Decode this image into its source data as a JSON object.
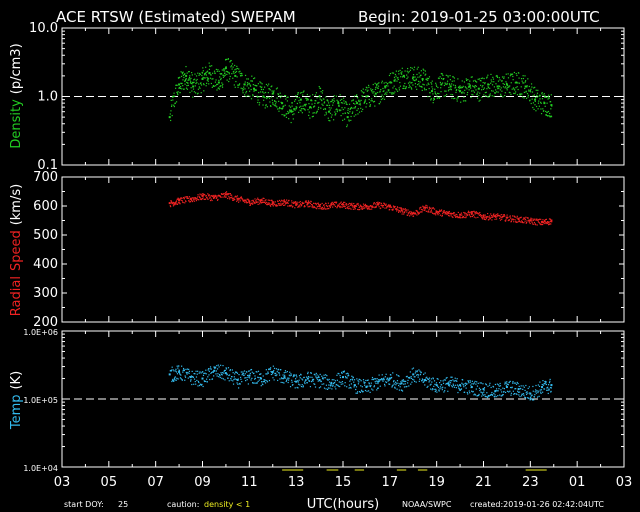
{
  "header": {
    "title": "ACE RTSW (Estimated) SWEPAM",
    "begin": "Begin: 2019-01-25 03:00:00UTC"
  },
  "footer": {
    "start_doy_label": "start DOY:",
    "start_doy_value": "25",
    "caution_label": "caution:",
    "caution_value": "density < 1",
    "source": "NOAA/SWPC",
    "created": "created:2019-01-26 02:42:04UTC"
  },
  "colors": {
    "density": "#22cc22",
    "speed": "#ee2222",
    "temp": "#33bbee",
    "caution": "#eeee22",
    "frame": "#ffffff",
    "background": "#000000"
  },
  "chart_data": [
    {
      "type": "scatter",
      "name": "density",
      "ylabel": "Density (p/cm3)",
      "ylabel_parts": [
        "Density",
        "(p/cm3)"
      ],
      "yscale": "log",
      "ylim": [
        0.1,
        10.0
      ],
      "yticks": [
        {
          "v": 10.0,
          "label": "10.0"
        },
        {
          "v": 1.0,
          "label": "1.0"
        },
        {
          "v": 0.1,
          "label": "0.1"
        }
      ],
      "reference_line": 1.0,
      "x_hours": [
        7.6,
        8.0,
        8.3,
        8.6,
        9.0,
        9.3,
        9.7,
        10.0,
        10.4,
        10.8,
        11.2,
        11.6,
        12.0,
        12.4,
        12.8,
        13.2,
        13.6,
        14.0,
        14.4,
        14.8,
        15.2,
        15.6,
        16.0,
        16.4,
        16.8,
        17.2,
        17.6,
        18.0,
        18.4,
        18.8,
        19.2,
        19.6,
        20.0,
        20.4,
        20.8,
        21.2,
        21.6,
        22.0,
        22.4,
        22.8,
        23.2,
        23.6,
        23.9
      ],
      "y": [
        0.5,
        1.5,
        2.0,
        1.4,
        1.8,
        2.2,
        1.6,
        2.6,
        2.0,
        1.5,
        1.3,
        1.0,
        1.1,
        0.8,
        0.6,
        0.9,
        0.7,
        1.0,
        0.6,
        0.8,
        0.5,
        0.8,
        1.0,
        1.1,
        1.4,
        1.7,
        2.0,
        1.9,
        1.8,
        1.2,
        1.5,
        1.4,
        1.2,
        1.4,
        1.3,
        1.5,
        1.4,
        1.5,
        1.6,
        1.4,
        0.9,
        0.8,
        0.75
      ]
    },
    {
      "type": "scatter",
      "name": "radial speed",
      "ylabel": "Radial Speed (km/s)",
      "ylabel_parts": [
        "Radial",
        "Speed",
        "(km/s)"
      ],
      "ylim": [
        200,
        700
      ],
      "yticks": [
        {
          "v": 700,
          "label": "700"
        },
        {
          "v": 600,
          "label": "600"
        },
        {
          "v": 500,
          "label": "500"
        },
        {
          "v": 400,
          "label": "400"
        },
        {
          "v": 300,
          "label": "300"
        },
        {
          "v": 200,
          "label": "200"
        }
      ],
      "x_hours": [
        7.6,
        8.0,
        8.5,
        9.0,
        9.5,
        10.0,
        10.5,
        11.0,
        11.5,
        12.0,
        12.5,
        13.0,
        13.5,
        14.0,
        14.5,
        15.0,
        15.5,
        16.0,
        16.5,
        17.0,
        17.5,
        18.0,
        18.5,
        19.0,
        19.5,
        20.0,
        20.5,
        21.0,
        21.5,
        22.0,
        22.5,
        23.0,
        23.5,
        23.9
      ],
      "y": [
        610,
        620,
        625,
        635,
        630,
        640,
        625,
        615,
        620,
        610,
        615,
        605,
        610,
        600,
        605,
        605,
        600,
        600,
        605,
        598,
        585,
        575,
        595,
        580,
        575,
        570,
        575,
        565,
        565,
        560,
        555,
        550,
        545,
        550
      ]
    },
    {
      "type": "scatter",
      "name": "temperature",
      "ylabel": "Temp (K)",
      "ylabel_parts": [
        "Temp",
        "(K)"
      ],
      "yscale": "log",
      "ylim": [
        10000,
        1000000
      ],
      "yticks": [
        {
          "v": 1000000,
          "label": "1.0E+06"
        },
        {
          "v": 100000,
          "label": "1.0E+05"
        },
        {
          "v": 10000,
          "label": "1.0E+04"
        }
      ],
      "reference_line": 100000,
      "x_hours": [
        7.6,
        8.0,
        8.5,
        9.0,
        9.5,
        10.0,
        10.5,
        11.0,
        11.5,
        12.0,
        12.5,
        13.0,
        13.5,
        14.0,
        14.5,
        15.0,
        15.5,
        16.0,
        16.5,
        17.0,
        17.5,
        18.0,
        18.5,
        19.0,
        19.5,
        20.0,
        20.5,
        21.0,
        21.5,
        22.0,
        22.5,
        23.0,
        23.5,
        23.9
      ],
      "y": [
        230000,
        250000,
        210000,
        200000,
        260000,
        240000,
        190000,
        220000,
        200000,
        250000,
        210000,
        180000,
        200000,
        190000,
        170000,
        210000,
        160000,
        150000,
        180000,
        200000,
        170000,
        230000,
        190000,
        160000,
        170000,
        160000,
        150000,
        140000,
        130000,
        150000,
        140000,
        120000,
        150000,
        160000
      ]
    }
  ],
  "x_axis": {
    "label": "UTC(hours)",
    "ticks": [
      "03",
      "05",
      "07",
      "09",
      "11",
      "13",
      "15",
      "17",
      "19",
      "21",
      "23",
      "01",
      "03"
    ],
    "range_hours": [
      3,
      27
    ]
  }
}
